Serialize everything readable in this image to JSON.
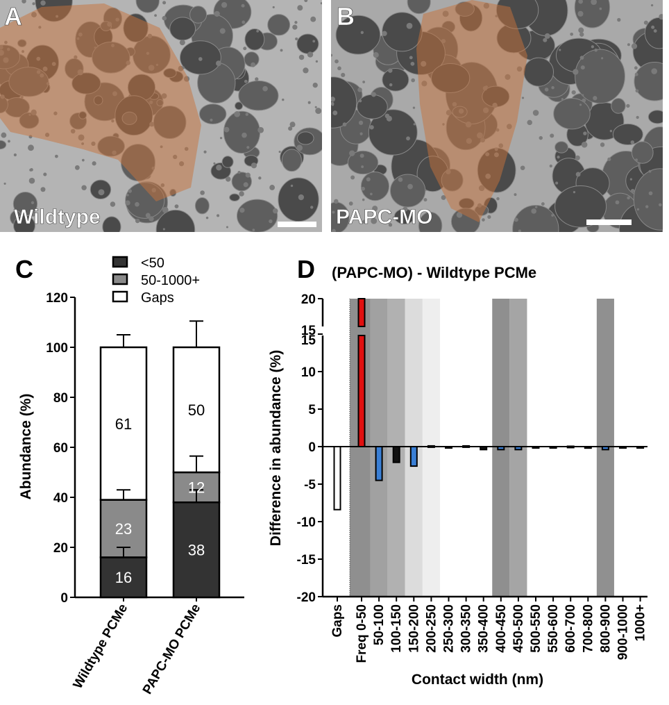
{
  "micrographs": [
    {
      "letter": "A",
      "label": "Wildtype"
    },
    {
      "letter": "B",
      "label": "PAPC-MO"
    }
  ],
  "colors": {
    "dark": "#333333",
    "gray": "#8a8a8a",
    "white": "#ffffff",
    "red": "#e01010",
    "blue": "#3a7fd5",
    "overlay": "#c8723a"
  },
  "chart_data": [
    {
      "panel": "C",
      "type": "bar",
      "stacked": true,
      "title": "",
      "xlabel": "",
      "ylabel": "Abundance (%)",
      "ylim": [
        0,
        120
      ],
      "yticks": [
        "0",
        "20",
        "40",
        "60",
        "80",
        "100",
        "120"
      ],
      "categories": [
        "Wildtype PCMe",
        "PAPC-MO PCMe"
      ],
      "legend": [
        "<50",
        "50-1000+",
        "Gaps"
      ],
      "legend_position": "top",
      "series": [
        {
          "name": "<50",
          "values": [
            16,
            38
          ],
          "labels": [
            "16",
            "38"
          ],
          "error": [
            4,
            5
          ]
        },
        {
          "name": "50-1000+",
          "values": [
            23,
            12
          ],
          "labels": [
            "23",
            "12"
          ],
          "error": [
            4,
            6.5
          ]
        },
        {
          "name": "Gaps",
          "values": [
            61,
            50
          ],
          "labels": [
            "61",
            "50"
          ],
          "error": [
            5,
            10.5
          ]
        }
      ]
    },
    {
      "panel": "D",
      "type": "bar",
      "title": "(PAPC-MO) - Wildtype PCMe",
      "xlabel": "Contact width (nm)",
      "ylabel": "Difference in abundance (%)",
      "ylim": [
        -20,
        20
      ],
      "axis_break": [
        15,
        15
      ],
      "yticks_lower": [
        "15",
        "10",
        "5",
        "0",
        "-5",
        "-10",
        "-15",
        "-20"
      ],
      "yticks_upper": [
        "20",
        "15"
      ],
      "categories": [
        "Gaps",
        "Freq 0-50",
        "50-100",
        "100-150",
        "150-200",
        "200-250",
        "250-300",
        "300-350",
        "350-400",
        "400-450",
        "450-500",
        "500-550",
        "550-600",
        "600-700",
        "700-800",
        "800-900",
        "900-1000",
        "1000+"
      ],
      "values": [
        -8.4,
        20,
        -4.5,
        -2.1,
        -2.6,
        0.1,
        0,
        0.1,
        -0.4,
        -0.4,
        -0.4,
        -0.1,
        -0.1,
        0.05,
        -0.2,
        -0.4,
        -0.1,
        0
      ],
      "bar_colors": [
        "white",
        "red",
        "blue",
        "black",
        "blue",
        "black",
        "black",
        "black",
        "black",
        "blue",
        "blue",
        "black",
        "black",
        "black",
        "black",
        "blue",
        "black",
        "black"
      ],
      "background_bands": [
        {
          "category": "Freq 0-50",
          "shade": "#8f8f8f"
        },
        {
          "category": "50-100",
          "shade": "#a1a1a1"
        },
        {
          "category": "100-150",
          "shade": "#b1b1b1"
        },
        {
          "category": "150-200",
          "shade": "#dcdcdc"
        },
        {
          "category": "200-250",
          "shade": "#eeeeee"
        },
        {
          "category": "400-450",
          "shade": "#8f8f8f"
        },
        {
          "category": "450-500",
          "shade": "#a5a5a5"
        },
        {
          "category": "800-900",
          "shade": "#909090"
        }
      ]
    }
  ]
}
